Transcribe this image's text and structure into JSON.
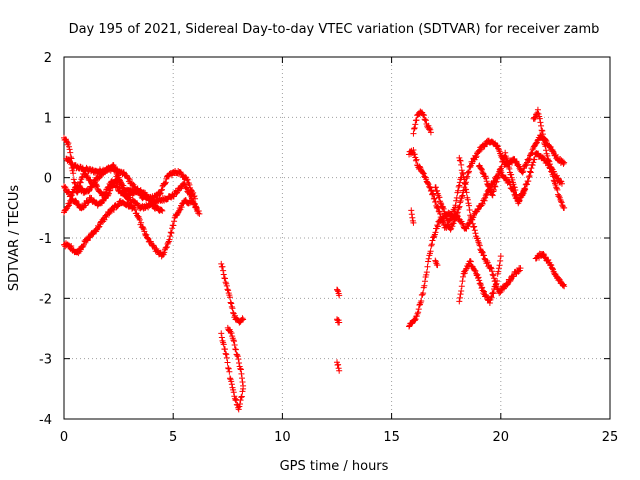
{
  "chart_data": {
    "type": "scatter",
    "title": "Day 195 of 2021, Sidereal Day-to-day VTEC variation (SDTVAR) for receiver zamb",
    "xlabel": "GPS time / hours",
    "ylabel": "SDTVAR / TECUs",
    "xlim": [
      0,
      25
    ],
    "ylim": [
      -4,
      2
    ],
    "xticks": [
      0,
      5,
      10,
      15,
      20,
      25
    ],
    "yticks": [
      -4,
      -3,
      -2,
      -1,
      0,
      1,
      2
    ],
    "grid": true,
    "marker": "+",
    "colors": {
      "series": "#ff0000",
      "grid": "#a0a0a0",
      "axis": "#000000"
    },
    "series": [
      {
        "name": "SDTVAR",
        "tracks": [
          [
            [
              0.0,
              0.65
            ],
            [
              0.2,
              0.55
            ],
            [
              0.4,
              0.2
            ],
            [
              0.8,
              0.15
            ],
            [
              1.5,
              0.1
            ],
            [
              2.2,
              0.15
            ],
            [
              2.8,
              0.05
            ],
            [
              3.5,
              -0.3
            ],
            [
              4.2,
              -0.4
            ],
            [
              5.0,
              -0.3
            ],
            [
              5.5,
              -0.1
            ],
            [
              5.8,
              -0.3
            ],
            [
              6.1,
              -0.55
            ]
          ],
          [
            [
              0.0,
              -0.15
            ],
            [
              0.3,
              -0.3
            ],
            [
              0.6,
              -0.15
            ],
            [
              1.0,
              -0.25
            ],
            [
              1.4,
              -0.1
            ],
            [
              1.8,
              -0.3
            ],
            [
              2.2,
              -0.05
            ],
            [
              2.6,
              -0.25
            ],
            [
              3.0,
              -0.35
            ],
            [
              3.5,
              -0.5
            ],
            [
              4.0,
              -0.45
            ],
            [
              4.5,
              -0.55
            ]
          ],
          [
            [
              0.0,
              -0.55
            ],
            [
              0.4,
              -0.35
            ],
            [
              0.8,
              -0.5
            ],
            [
              1.2,
              -0.35
            ],
            [
              1.6,
              -0.45
            ],
            [
              2.0,
              -0.3
            ],
            [
              2.4,
              0.0
            ],
            [
              2.8,
              -0.2
            ],
            [
              3.2,
              -0.25
            ]
          ],
          [
            [
              0.0,
              -1.1
            ],
            [
              0.3,
              -1.15
            ],
            [
              0.6,
              -1.25
            ],
            [
              1.0,
              -1.05
            ],
            [
              1.5,
              -0.85
            ],
            [
              2.0,
              -0.6
            ],
            [
              2.6,
              -0.4
            ],
            [
              3.2,
              -0.5
            ],
            [
              3.8,
              -1.0
            ],
            [
              4.2,
              -1.2
            ],
            [
              4.5,
              -1.3
            ],
            [
              4.8,
              -1.05
            ],
            [
              5.1,
              -0.65
            ],
            [
              5.5,
              -0.4
            ],
            [
              5.9,
              -0.4
            ],
            [
              6.2,
              -0.6
            ]
          ],
          [
            [
              0.1,
              0.3
            ],
            [
              0.3,
              0.25
            ],
            [
              0.6,
              -0.25
            ],
            [
              0.9,
              0.1
            ],
            [
              1.3,
              -0.1
            ],
            [
              1.8,
              0.1
            ],
            [
              2.3,
              0.2
            ],
            [
              2.8,
              -0.3
            ],
            [
              3.4,
              -0.2
            ],
            [
              4.0,
              -0.35
            ],
            [
              4.4,
              -0.25
            ],
            [
              4.8,
              0.05
            ],
            [
              5.2,
              0.1
            ],
            [
              5.6,
              0.0
            ],
            [
              6.0,
              -0.35
            ]
          ],
          [
            [
              7.2,
              -1.4
            ],
            [
              7.4,
              -1.75
            ],
            [
              7.6,
              -2.0
            ],
            [
              7.8,
              -2.3
            ],
            [
              8.0,
              -2.4
            ],
            [
              8.2,
              -2.35
            ]
          ],
          [
            [
              7.2,
              -2.6
            ],
            [
              7.4,
              -2.9
            ],
            [
              7.6,
              -3.3
            ],
            [
              7.8,
              -3.6
            ],
            [
              8.0,
              -3.85
            ],
            [
              8.2,
              -3.5
            ]
          ],
          [
            [
              7.5,
              -2.5
            ],
            [
              7.7,
              -2.6
            ],
            [
              7.9,
              -2.9
            ],
            [
              8.1,
              -3.2
            ],
            [
              8.2,
              -3.45
            ]
          ],
          [
            [
              12.5,
              -1.85
            ],
            [
              12.6,
              -1.95
            ]
          ],
          [
            [
              12.5,
              -2.35
            ],
            [
              12.6,
              -2.4
            ]
          ],
          [
            [
              12.5,
              -3.05
            ],
            [
              12.6,
              -3.2
            ]
          ],
          [
            [
              15.8,
              -2.45
            ],
            [
              16.1,
              -2.35
            ],
            [
              16.3,
              -2.1
            ],
            [
              16.5,
              -1.8
            ],
            [
              16.7,
              -1.35
            ],
            [
              16.9,
              -1.0
            ],
            [
              17.2,
              -0.7
            ],
            [
              17.6,
              -0.6
            ],
            [
              18.0,
              -0.65
            ],
            [
              18.4,
              -0.85
            ],
            [
              18.8,
              -0.6
            ],
            [
              19.2,
              -0.4
            ],
            [
              19.6,
              -0.1
            ],
            [
              20.0,
              0.1
            ],
            [
              20.4,
              -0.1
            ],
            [
              20.8,
              -0.4
            ],
            [
              21.2,
              -0.1
            ],
            [
              21.6,
              0.4
            ],
            [
              22.0,
              0.3
            ],
            [
              22.4,
              0.1
            ],
            [
              22.8,
              -0.1
            ]
          ],
          [
            [
              15.8,
              0.4
            ],
            [
              16.0,
              0.45
            ],
            [
              16.2,
              0.2
            ],
            [
              16.5,
              0.05
            ],
            [
              16.8,
              -0.2
            ],
            [
              17.1,
              -0.5
            ],
            [
              17.4,
              -0.8
            ],
            [
              17.7,
              -0.85
            ],
            [
              18.0,
              -0.6
            ],
            [
              18.3,
              -0.2
            ],
            [
              18.6,
              0.2
            ],
            [
              19.0,
              0.45
            ],
            [
              19.4,
              0.6
            ],
            [
              19.8,
              0.55
            ],
            [
              20.2,
              0.2
            ],
            [
              20.6,
              0.3
            ],
            [
              21.0,
              0.1
            ],
            [
              21.4,
              0.4
            ],
            [
              21.8,
              0.7
            ],
            [
              22.2,
              0.55
            ],
            [
              22.6,
              0.3
            ],
            [
              22.9,
              0.25
            ]
          ],
          [
            [
              15.9,
              -0.55
            ],
            [
              16.0,
              -0.75
            ]
          ],
          [
            [
              16.0,
              0.75
            ],
            [
              16.2,
              1.05
            ],
            [
              16.4,
              1.1
            ],
            [
              16.6,
              0.9
            ],
            [
              16.8,
              0.75
            ]
          ],
          [
            [
              17.0,
              -0.15
            ],
            [
              17.3,
              -0.45
            ],
            [
              17.6,
              -0.75
            ],
            [
              17.9,
              -0.5
            ],
            [
              18.1,
              -0.1
            ],
            [
              18.2,
              0.0
            ]
          ],
          [
            [
              17.0,
              -1.35
            ],
            [
              17.1,
              -1.45
            ]
          ],
          [
            [
              18.1,
              0.35
            ],
            [
              18.3,
              0.0
            ],
            [
              18.6,
              -0.6
            ],
            [
              18.9,
              -1.0
            ],
            [
              19.2,
              -1.3
            ],
            [
              19.6,
              -1.55
            ],
            [
              19.9,
              -1.9
            ],
            [
              20.2,
              -1.8
            ],
            [
              20.6,
              -1.6
            ],
            [
              20.9,
              -1.5
            ]
          ],
          [
            [
              18.1,
              -2.05
            ],
            [
              18.3,
              -1.6
            ],
            [
              18.6,
              -1.4
            ],
            [
              18.9,
              -1.6
            ],
            [
              19.2,
              -1.9
            ],
            [
              19.5,
              -2.05
            ],
            [
              19.8,
              -1.75
            ],
            [
              20.0,
              -1.3
            ]
          ],
          [
            [
              21.6,
              -1.35
            ],
            [
              21.9,
              -1.25
            ],
            [
              22.2,
              -1.4
            ],
            [
              22.5,
              -1.6
            ],
            [
              22.8,
              -1.75
            ],
            [
              22.9,
              -1.8
            ]
          ],
          [
            [
              21.5,
              0.95
            ],
            [
              21.7,
              1.1
            ],
            [
              21.9,
              0.75
            ],
            [
              22.1,
              0.4
            ],
            [
              22.4,
              0.0
            ],
            [
              22.7,
              -0.35
            ],
            [
              22.9,
              -0.5
            ]
          ],
          [
            [
              19.0,
              0.2
            ],
            [
              19.3,
              0.0
            ],
            [
              19.6,
              -0.3
            ],
            [
              19.9,
              0.05
            ],
            [
              20.2,
              0.4
            ],
            [
              20.5,
              0.0
            ],
            [
              20.8,
              -0.4
            ],
            [
              21.1,
              -0.2
            ]
          ]
        ]
      }
    ]
  }
}
